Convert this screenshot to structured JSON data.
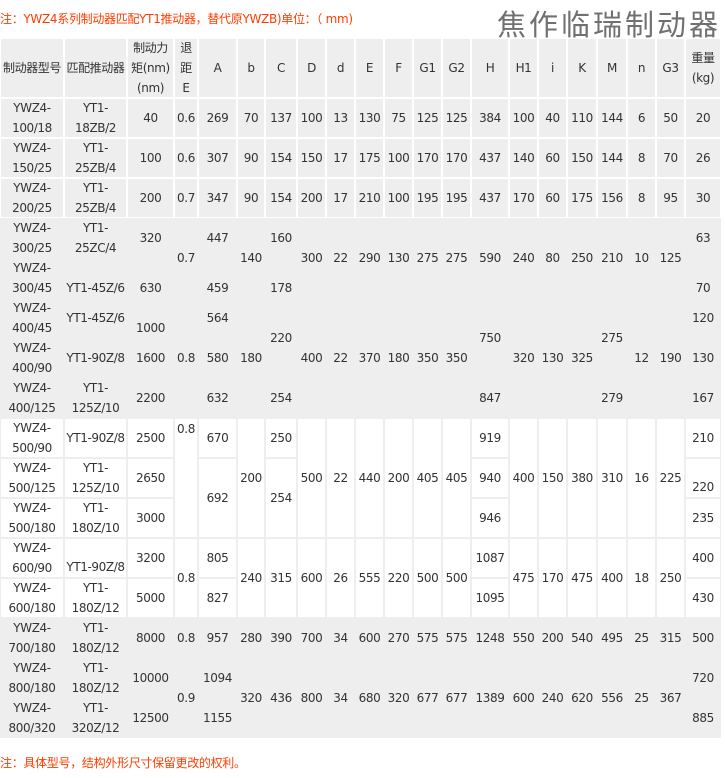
{
  "top_note": "注：YWZ4系列制动器匹配YT1推动器，替代原YWZB)单位：（ mm)",
  "brand": "焦作临瑞制动器",
  "footer_note": "注：具体型号，结构外形尺寸保留更改的权利。",
  "colors": {
    "note": "#ff3c00",
    "cell_gray": "#eeeeee",
    "text": "#333333"
  },
  "table": {
    "headers": [
      "制动器型号",
      "匹配推动器",
      "制动力\n矩(nm)\n(nm)",
      "退\n距\nE",
      "A",
      "b",
      "C",
      "D",
      "d",
      "E",
      "F",
      "G1",
      "G2",
      "H",
      "H1",
      "i",
      "K",
      "M",
      "n",
      "G3",
      "重量\n(kg)"
    ],
    "cells": [
      "YWZ4-\n100/18",
      "YT1-\n18ZB/2",
      "40",
      "0.6",
      "269",
      "70",
      "137",
      "100",
      "13",
      "130",
      "75",
      "125",
      "125",
      "384",
      "100",
      "40",
      "110",
      "144",
      "6",
      "50",
      "20",
      "YWZ4-\n150/25",
      "YT1-\n25ZB/4",
      "100",
      "0.6",
      "307",
      "90",
      "154",
      "150",
      "17",
      "175",
      "100",
      "170",
      "170",
      "437",
      "140",
      "60",
      "150",
      "144",
      "8",
      "70",
      "26",
      "YWZ4-\n200/25",
      "YT1-\n25ZB/4",
      "200",
      "0.7",
      "347",
      "90",
      "154",
      "200",
      "17",
      "210",
      "100",
      "195",
      "195",
      "437",
      "170",
      "60",
      "175",
      "156",
      "8",
      "95",
      "30",
      "YWZ4-\n300/25",
      "YT1-\n25ZC/4",
      "320",
      "0.7",
      "447",
      "140",
      "160",
      "300",
      "22",
      "290",
      "130",
      "275",
      "275",
      "590",
      "240",
      "80",
      "250",
      "210",
      "10",
      "125",
      "63",
      "YWZ4-\n300/45",
      "YT1-45Z/6",
      "630",
      "459",
      "178",
      "70",
      "YWZ4-\n400/45",
      "YT1-45Z/6",
      "1000",
      "0.8",
      "564",
      "180",
      "220",
      "400",
      "22",
      "370",
      "180",
      "350",
      "350",
      "750",
      "320",
      "130",
      "325",
      "275",
      "12",
      "190",
      "120",
      "YWZ4-\n400/90",
      "YT1-90Z/8",
      "1600",
      "580",
      "130",
      "YWZ4-\n400/125",
      "YT1-\n125Z/10",
      "2200",
      "632",
      "254",
      "847",
      "279",
      "167",
      "YWZ4-\n500/90",
      "YT1-90Z/8",
      "2500",
      "0.8",
      "670",
      "200",
      "250",
      "500",
      "22",
      "440",
      "200",
      "405",
      "405",
      "919",
      "400",
      "150",
      "380",
      "310",
      "16",
      "225",
      "210",
      "YWZ4-\n500/125",
      "YT1-\n125Z/10",
      "2650",
      "692",
      "254",
      "940",
      "220",
      "YWZ4-\n500/180",
      "YT1-\n180Z/10",
      "3000",
      "946",
      "235",
      "YWZ4-\n600/90",
      "YT1-90Z/8",
      "3200",
      "0.8",
      "805",
      "240",
      "315",
      "600",
      "26",
      "555",
      "220",
      "500",
      "500",
      "1087",
      "475",
      "170",
      "475",
      "400",
      "18",
      "250",
      "400",
      "YWZ4-\n600/180",
      "YT1-\n180Z/12",
      "5000",
      "827",
      "1095",
      "430",
      "YWZ4-\n700/180",
      "YT1-\n180Z/12",
      "8000",
      "0.8",
      "957",
      "280",
      "390",
      "700",
      "34",
      "600",
      "270",
      "575",
      "575",
      "1248",
      "550",
      "200",
      "540",
      "495",
      "25",
      "315",
      "500",
      "YWZ4-\n800/180",
      "YT1-\n180Z/12",
      "10000",
      "0.9",
      "1094",
      "320",
      "436",
      "800",
      "34",
      "680",
      "320",
      "677",
      "677",
      "1389",
      "600",
      "240",
      "620",
      "556",
      "25",
      "367",
      "720",
      "YWZ4-\n800/320",
      "YT1-\n320Z/12",
      "12500",
      "1155",
      "885"
    ]
  }
}
